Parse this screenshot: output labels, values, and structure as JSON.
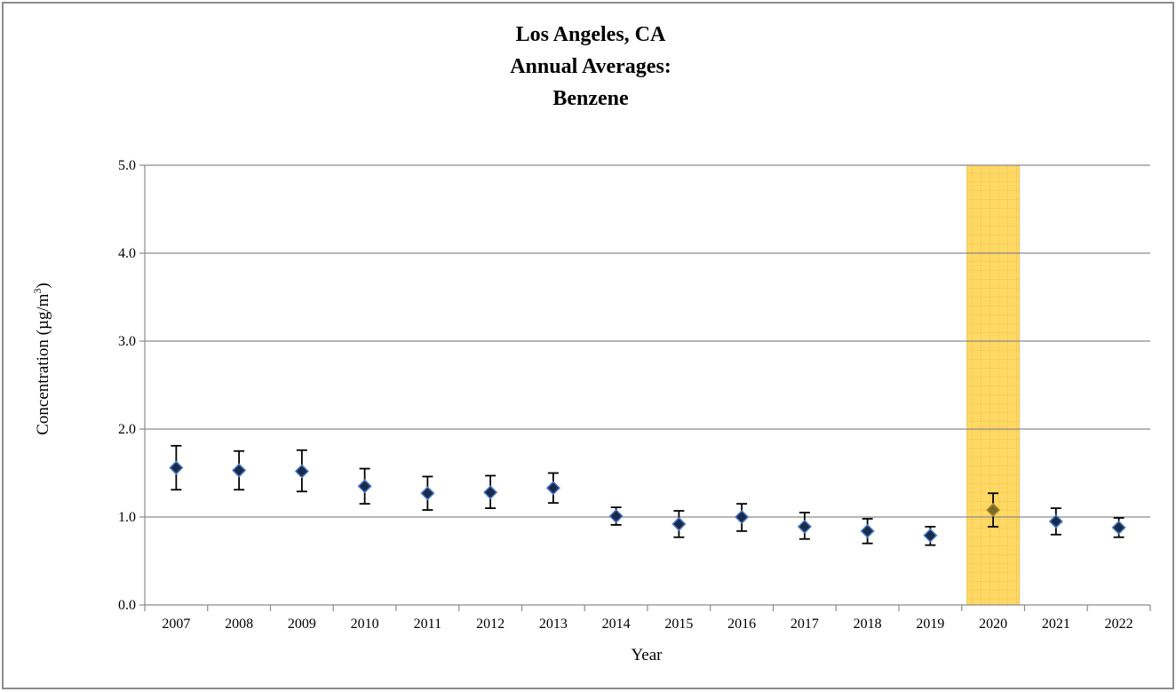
{
  "chart_data": {
    "type": "scatter",
    "title_lines": [
      "Los Angeles, CA",
      "Annual Averages:",
      "Benzene"
    ],
    "xlabel": "Year",
    "ylabel_main": "Concentration (µg/m",
    "ylabel_sup": "3",
    "ylabel_close": ")",
    "ylim": [
      0,
      5
    ],
    "y_ticks": [
      "0.0",
      "1.0",
      "2.0",
      "3.0",
      "4.0",
      "5.0"
    ],
    "grid": true,
    "categories": [
      "2007",
      "2008",
      "2009",
      "2010",
      "2011",
      "2012",
      "2013",
      "2014",
      "2015",
      "2016",
      "2017",
      "2018",
      "2019",
      "2020",
      "2021",
      "2022"
    ],
    "series": [
      {
        "values": [
          1.56,
          1.53,
          1.52,
          1.35,
          1.27,
          1.28,
          1.33,
          1.01,
          0.92,
          1.0,
          0.89,
          0.84,
          0.79,
          1.08,
          0.95,
          0.88
        ],
        "error_low": [
          1.31,
          1.31,
          1.29,
          1.15,
          1.08,
          1.1,
          1.16,
          0.91,
          0.77,
          0.84,
          0.75,
          0.7,
          0.68,
          0.89,
          0.8,
          0.77
        ],
        "error_high": [
          1.81,
          1.75,
          1.76,
          1.55,
          1.46,
          1.47,
          1.5,
          1.11,
          1.07,
          1.15,
          1.05,
          0.98,
          0.89,
          1.27,
          1.1,
          0.99
        ]
      }
    ],
    "highlight_category": "2020",
    "colors": {
      "marker_fill": "#1a2a4a",
      "marker_stroke": "#4a7cc7",
      "error_bar": "#000000",
      "grid": "#8c8c8c",
      "highlight_fill": "#ffd966",
      "highlight_grid": "#e6a817"
    }
  }
}
